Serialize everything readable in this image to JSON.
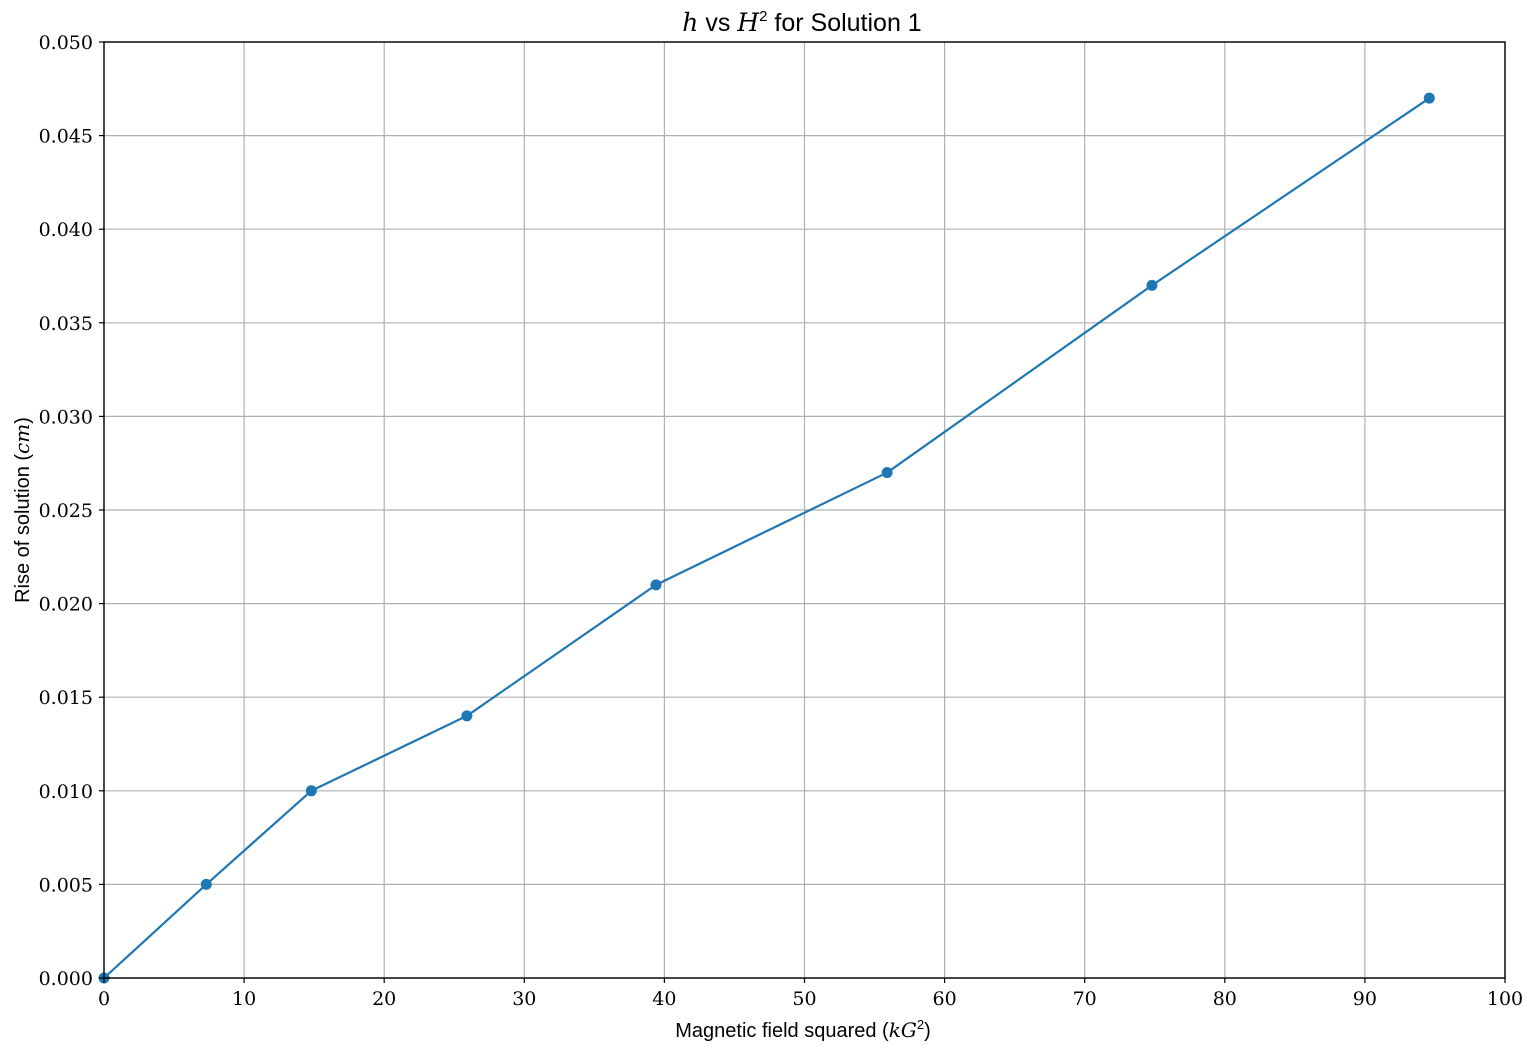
{
  "chart_data": {
    "type": "line",
    "title": {
      "var1": "h",
      "mid": " vs ",
      "var2": "H",
      "sup": "2",
      "rest": " for Solution 1"
    },
    "xlabel": {
      "text": "Magnetic field squared (",
      "unit": "kG",
      "sup": "2",
      "close": ")"
    },
    "ylabel": {
      "text": "Rise of solution (",
      "unit": "cm",
      "close": ")"
    },
    "xlim": [
      0,
      100
    ],
    "ylim": [
      0,
      0.05
    ],
    "xticks": [
      0,
      10,
      20,
      30,
      40,
      50,
      60,
      70,
      80,
      90,
      100
    ],
    "yticks": [
      0.0,
      0.005,
      0.01,
      0.015,
      0.02,
      0.025,
      0.03,
      0.035,
      0.04,
      0.045,
      0.05
    ],
    "ytick_labels": [
      "0.000",
      "0.005",
      "0.010",
      "0.015",
      "0.020",
      "0.025",
      "0.030",
      "0.035",
      "0.040",
      "0.045",
      "0.050"
    ],
    "grid": true,
    "legend": "none",
    "series": [
      {
        "color": "#1f77b4",
        "marker": "circle",
        "x": [
          0,
          7.3,
          14.8,
          25.9,
          39.4,
          55.9,
          74.8,
          94.6
        ],
        "y": [
          0.0,
          0.005,
          0.01,
          0.014,
          0.021,
          0.027,
          0.037,
          0.047
        ]
      }
    ]
  }
}
